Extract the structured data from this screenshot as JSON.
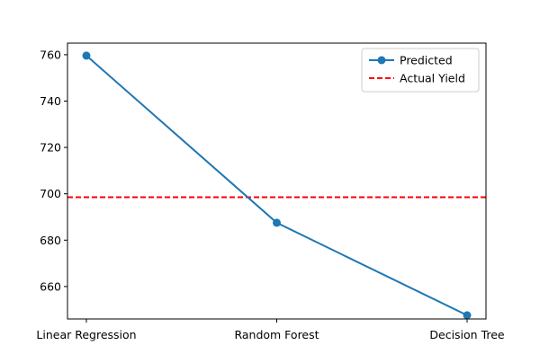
{
  "chart_data": {
    "type": "line",
    "categories": [
      "Linear Regression",
      "Random Forest",
      "Decision Tree"
    ],
    "series": [
      {
        "name": "Predicted",
        "values": [
          759.6,
          687.5,
          647.6
        ],
        "color": "#1f77b4",
        "marker": "circle",
        "linestyle": "solid"
      }
    ],
    "reference_lines": [
      {
        "name": "Actual Yield",
        "value": 698.5,
        "color": "#ff0000",
        "linestyle": "dashed"
      }
    ],
    "ylim": [
      646,
      765
    ],
    "yticks": [
      660,
      680,
      700,
      720,
      740,
      760
    ],
    "title": "",
    "xlabel": "",
    "ylabel": "",
    "grid": false,
    "legend": {
      "placement": "upper-right",
      "entries": [
        "Predicted",
        "Actual Yield"
      ]
    }
  }
}
